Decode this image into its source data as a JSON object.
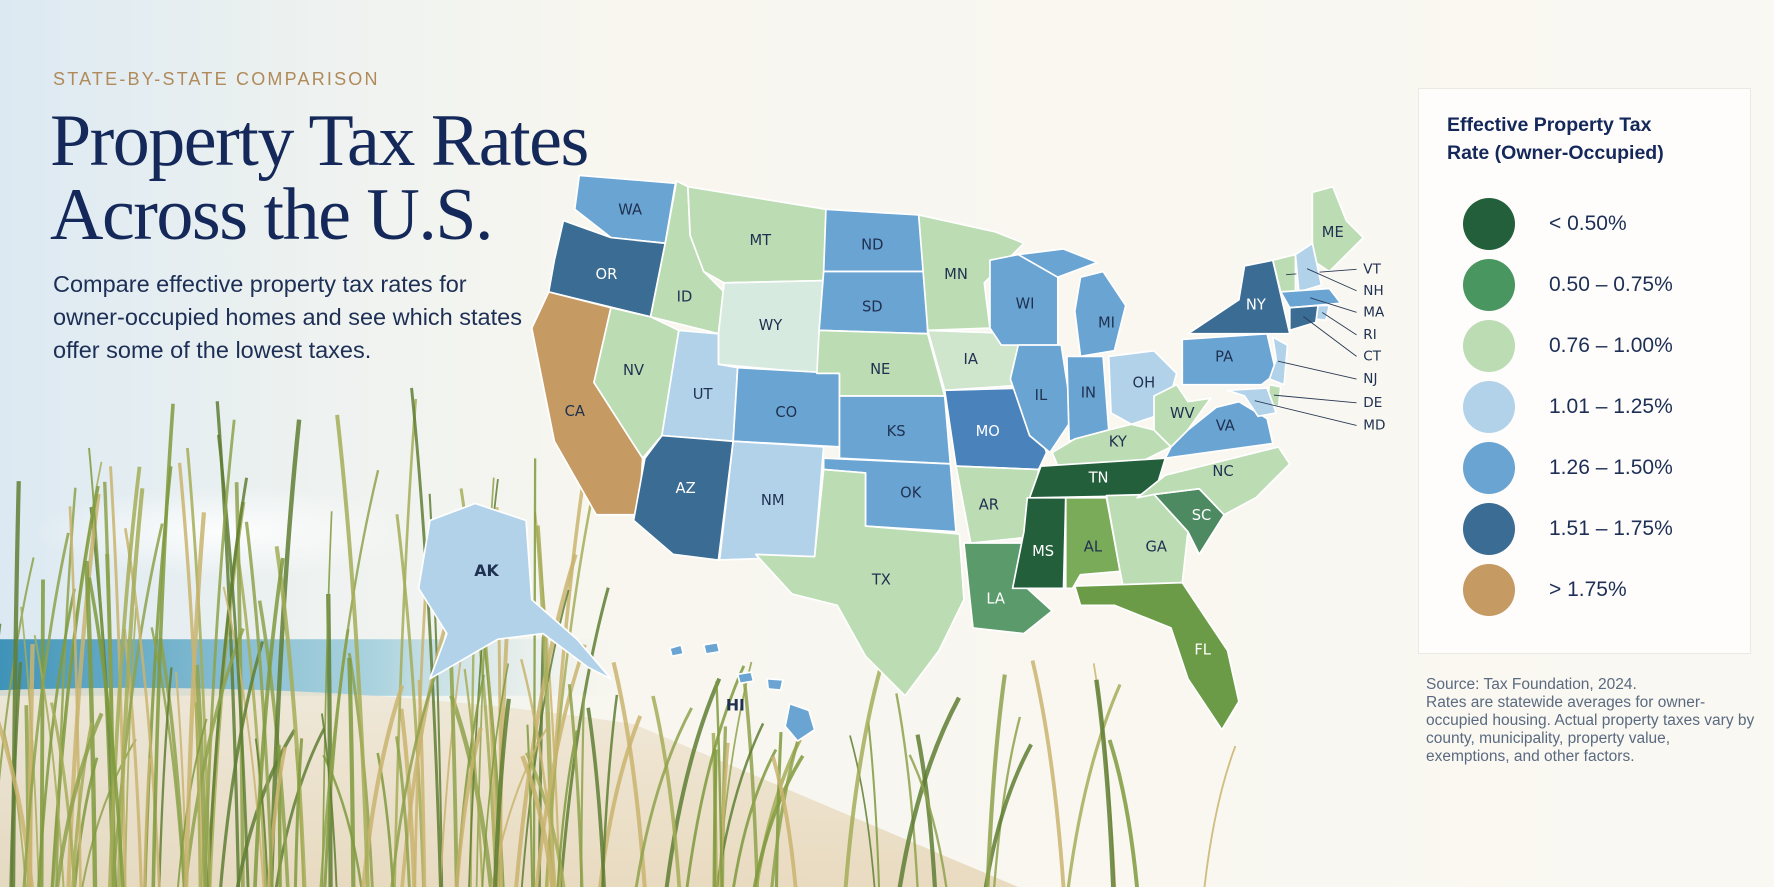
{
  "eyebrow": "STATE-BY-STATE COMPARISON",
  "title": "Property Tax Rates Across the U.S.",
  "subtitle": "Compare effective property tax rates for owner-occupied homes and see which states offer some of the lowest taxes.",
  "legend": {
    "title": "Effective Property Tax Rate (Owner-Occupied)",
    "items": [
      {
        "label": "< 0.50%",
        "color": "#245f3c"
      },
      {
        "label": "0.50 – 0.75%",
        "color": "#4a9660"
      },
      {
        "label": "0.76 – 1.00%",
        "color": "#bcdcb4"
      },
      {
        "label": "1.01 – 1.25%",
        "color": "#b2d2ea"
      },
      {
        "label": "1.26 – 1.50%",
        "color": "#6aa4d2"
      },
      {
        "label": "1.51 – 1.75%",
        "color": "#3b6c93"
      },
      {
        "label": "> 1.75%",
        "color": "#c59a63"
      }
    ]
  },
  "source": "Source: Tax Foundation, 2024.",
  "note": "Rates are statewide averages for owner-occupied housing. Actual property taxes vary by county, municipality, property value, exemptions, and other factors.",
  "states": [
    {
      "label": "WA",
      "color": "#6aa4d2"
    },
    {
      "label": "OR",
      "color": "#3b6c93"
    },
    {
      "label": "CA",
      "color": "#c59a63"
    },
    {
      "label": "ID",
      "color": "#bcdcb4"
    },
    {
      "label": "NV",
      "color": "#bcdcb4"
    },
    {
      "label": "MT",
      "color": "#bcdcb4"
    },
    {
      "label": "WY",
      "color": "#d7eae0"
    },
    {
      "label": "UT",
      "color": "#b2d2ea"
    },
    {
      "label": "AZ",
      "color": "#3b6c93"
    },
    {
      "label": "CO",
      "color": "#6aa4d2"
    },
    {
      "label": "NM",
      "color": "#b2d2ea"
    },
    {
      "label": "ND",
      "color": "#6aa4d2"
    },
    {
      "label": "SD",
      "color": "#6aa4d2"
    },
    {
      "label": "NE",
      "color": "#bcdcb4"
    },
    {
      "label": "KS",
      "color": "#6aa4d2"
    },
    {
      "label": "OK",
      "color": "#6aa4d2"
    },
    {
      "label": "TX",
      "color": "#bcdcb4"
    },
    {
      "label": "MN",
      "color": "#bcdcb4"
    },
    {
      "label": "IA",
      "color": "#cfe5cc"
    },
    {
      "label": "MO",
      "color": "#4a82bb"
    },
    {
      "label": "AR",
      "color": "#bcdcb4"
    },
    {
      "label": "LA",
      "color": "#5b9b6b"
    },
    {
      "label": "WI",
      "color": "#6aa4d2"
    },
    {
      "label": "IL",
      "color": "#6aa4d2"
    },
    {
      "label": "MI",
      "color": "#6aa4d2"
    },
    {
      "label": "IN",
      "color": "#6aa4d2"
    },
    {
      "label": "OH",
      "color": "#b2d2ea"
    },
    {
      "label": "KY",
      "color": "#bcdcb4"
    },
    {
      "label": "TN",
      "color": "#245f3c"
    },
    {
      "label": "MS",
      "color": "#245f3c"
    },
    {
      "label": "AL",
      "color": "#7aab58"
    },
    {
      "label": "GA",
      "color": "#bcdcb4"
    },
    {
      "label": "FL",
      "color": "#6b9b47"
    },
    {
      "label": "SC",
      "color": "#4d8a62"
    },
    {
      "label": "NC",
      "color": "#bcdcb4"
    },
    {
      "label": "VA",
      "color": "#6aa4d2"
    },
    {
      "label": "WV",
      "color": "#bcdcb4"
    },
    {
      "label": "PA",
      "color": "#6aa4d2"
    },
    {
      "label": "NY",
      "color": "#3b6c93"
    },
    {
      "label": "ME",
      "color": "#bcdcb4"
    },
    {
      "label": "VT",
      "color": "#bcdcb4"
    },
    {
      "label": "NH",
      "color": "#b2d2ea"
    },
    {
      "label": "MA",
      "color": "#6aa4d2"
    },
    {
      "label": "RI",
      "color": "#b2d2ea"
    },
    {
      "label": "CT",
      "color": "#3b6c93"
    },
    {
      "label": "NJ",
      "color": "#b2d2ea"
    },
    {
      "label": "DE",
      "color": "#bcdcb4"
    },
    {
      "label": "MD",
      "color": "#b2d2ea"
    },
    {
      "label": "AK",
      "color": "#b2d2ea"
    },
    {
      "label": "HI",
      "color": "#6aa4d2"
    }
  ]
}
